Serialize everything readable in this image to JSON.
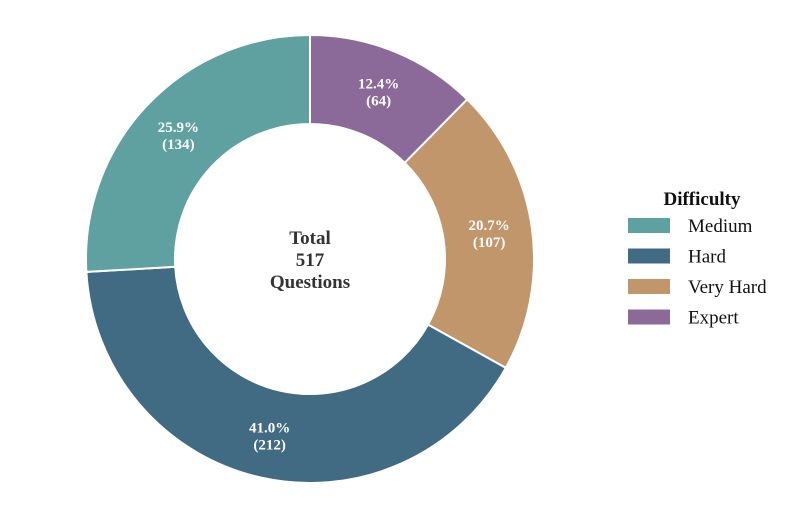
{
  "chart_data": {
    "type": "pie",
    "donut": true,
    "center_text": [
      "Total",
      "517",
      "Questions"
    ],
    "legend_title": "Difficulty",
    "legend_position": "right",
    "start_angle_deg": 0,
    "direction": "clockwise",
    "slices": [
      {
        "label": "Expert",
        "value": 64,
        "percent_label": "12.4%",
        "count_label": "(64)",
        "color": "#8b6a9a"
      },
      {
        "label": "Very Hard",
        "value": 107,
        "percent_label": "20.7%",
        "count_label": "(107)",
        "color": "#c0966a"
      },
      {
        "label": "Hard",
        "value": 212,
        "percent_label": "41.0%",
        "count_label": "(212)",
        "color": "#406b83"
      },
      {
        "label": "Medium",
        "value": 134,
        "percent_label": "25.9%",
        "count_label": "(134)",
        "color": "#5fa0a0"
      }
    ],
    "legend_order": [
      "Medium",
      "Hard",
      "Very Hard",
      "Expert"
    ]
  }
}
